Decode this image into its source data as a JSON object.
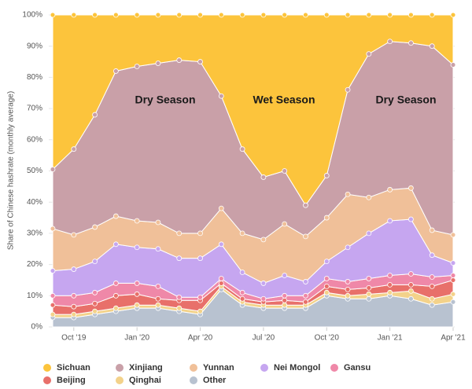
{
  "chart_data": {
    "type": "stacked_area",
    "y_label": "Share of Chinese hashrate (monthly average)",
    "categories": [
      null,
      "Oct '19",
      null,
      null,
      "Jan '20",
      null,
      null,
      "Apr '20",
      null,
      null,
      "Jul '20",
      null,
      null,
      "Oct '20",
      null,
      null,
      "Jan '21",
      null,
      null,
      "Apr '21"
    ],
    "series": [
      {
        "name": "Sichuan",
        "color": "#fcc43c",
        "values": [
          49.5,
          43,
          32,
          18,
          16.5,
          15.5,
          14.5,
          15,
          26,
          43,
          52,
          50,
          61,
          51.5,
          24,
          12.5,
          8.5,
          9,
          10,
          16
        ]
      },
      {
        "name": "Xinjiang",
        "color": "#c9a0a8",
        "values": [
          19,
          27.5,
          36,
          46.5,
          49.5,
          51,
          55.5,
          55,
          36,
          27,
          20,
          17,
          10,
          13.5,
          33.5,
          46,
          47.5,
          46.5,
          59,
          54.5
        ]
      },
      {
        "name": "Yunnan",
        "color": "#f0c099",
        "values": [
          13.5,
          11,
          11,
          9,
          8.5,
          8.5,
          8,
          8,
          11.5,
          12.5,
          14,
          16.5,
          14.5,
          14,
          17,
          11.5,
          10,
          10,
          8,
          9
        ]
      },
      {
        "name": "Nei Mongol",
        "color": "#c6a6f0",
        "values": [
          8,
          8.5,
          10,
          12.5,
          11.5,
          12,
          12.5,
          12.5,
          11,
          6.5,
          5,
          6.5,
          4.5,
          5.5,
          11,
          14.5,
          17.5,
          17.5,
          7,
          4
        ]
      },
      {
        "name": "Gansu",
        "color": "#ef88a8",
        "values": [
          3,
          3.5,
          3.5,
          4,
          3.5,
          4,
          1,
          1,
          1.5,
          2,
          1,
          1.5,
          2,
          2.5,
          2.5,
          3,
          3,
          3.5,
          3,
          1.5
        ]
      },
      {
        "name": "Beijing",
        "color": "#e8706a",
        "values": [
          3,
          2.5,
          2.5,
          4,
          3.5,
          2,
          2.5,
          3.5,
          1,
          1,
          1,
          1.5,
          1,
          2,
          2,
          2,
          2.5,
          2,
          4,
          4.5
        ]
      },
      {
        "name": "Qinghai",
        "color": "#f3d28a",
        "values": [
          1,
          1,
          1,
          1,
          1,
          1,
          1,
          1,
          1,
          1,
          1,
          1,
          1,
          1,
          1,
          1.5,
          1,
          2.5,
          2,
          2.5
        ]
      },
      {
        "name": "Other",
        "color": "#b8c2d0",
        "values": [
          3,
          3,
          4,
          5,
          6,
          6,
          5,
          4,
          12,
          7,
          6,
          6,
          6,
          10,
          9,
          9,
          10,
          9,
          7,
          8
        ]
      }
    ],
    "annotations": [
      "Dry Season",
      "Wet Season",
      "Dry Season"
    ],
    "ylim": [
      0,
      100
    ],
    "yticks": [
      {
        "value": 0,
        "label": "0%"
      },
      {
        "value": 10,
        "label": "10%"
      },
      {
        "value": 20,
        "label": "20%"
      },
      {
        "value": 30,
        "label": "30%"
      },
      {
        "value": 40,
        "label": "40%"
      },
      {
        "value": 50,
        "label": "50%"
      },
      {
        "value": 60,
        "label": "60%"
      },
      {
        "value": 70,
        "label": "70%"
      },
      {
        "value": 80,
        "label": "80%"
      },
      {
        "value": 90,
        "label": "90%"
      },
      {
        "value": 100,
        "label": "100%"
      }
    ],
    "grid": true,
    "legend": "bottom"
  }
}
